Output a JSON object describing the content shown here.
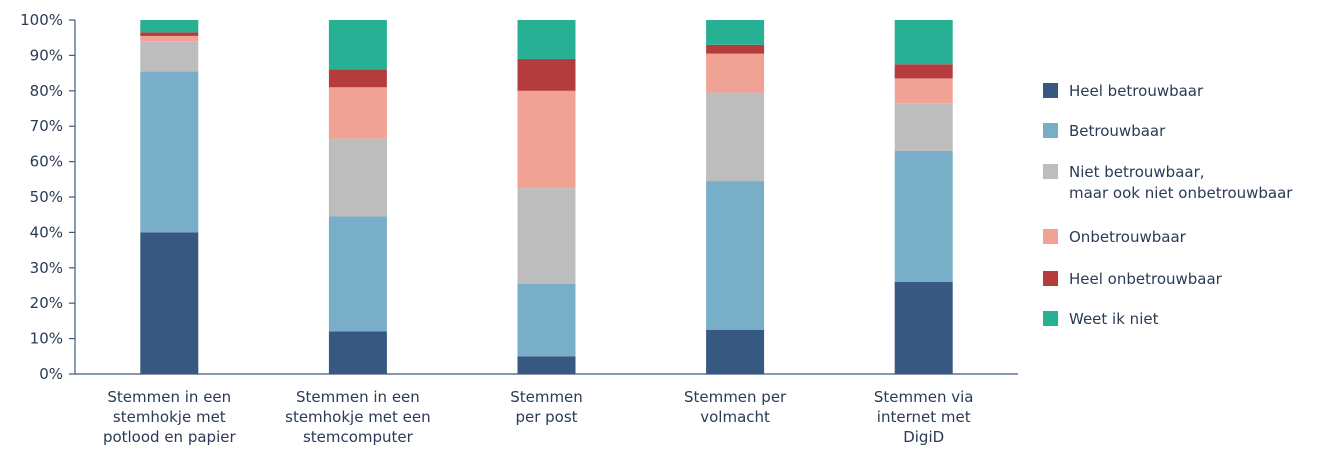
{
  "chart_data": {
    "type": "bar",
    "stacked": true,
    "percent": true,
    "categories": [
      [
        "Stemmen in een",
        "stemhokje met",
        "potlood en papier"
      ],
      [
        "Stemmen in een",
        "stemhokje met een",
        "stemcomputer"
      ],
      [
        "Stemmen",
        "per post"
      ],
      [
        "Stemmen per",
        "volmacht"
      ],
      [
        "Stemmen via",
        "internet met",
        "DigiD"
      ]
    ],
    "series": [
      {
        "name": "Heel betrouwbaar",
        "color": "#375880",
        "values": [
          40,
          12,
          5,
          12.5,
          26
        ]
      },
      {
        "name": "Betrouwbaar",
        "color": "#78aec8",
        "values": [
          45.5,
          32.5,
          20.5,
          42,
          37
        ]
      },
      {
        "name": [
          "Niet betrouwbaar,",
          "maar ook niet onbetrouwbaar"
        ],
        "color": "#bdbdbd",
        "values": [
          8.5,
          22,
          27,
          25,
          13.5
        ]
      },
      {
        "name": "Onbetrouwbaar",
        "color": "#f0a294",
        "values": [
          1.5,
          14.5,
          27.5,
          11,
          7
        ]
      },
      {
        "name": "Heel onbetrouwbaar",
        "color": "#b53c3c",
        "values": [
          1,
          5,
          9,
          2.5,
          4
        ]
      },
      {
        "name": "Weet ik niet",
        "color": "#27b094",
        "values": [
          3.5,
          14,
          11,
          7,
          12.5
        ]
      }
    ],
    "ylim": [
      0,
      100
    ],
    "yticks": [
      "0%",
      "10%",
      "20%",
      "30%",
      "40%",
      "50%",
      "60%",
      "70%",
      "80%",
      "90%",
      "100%"
    ],
    "grid": false,
    "legend_position": "right"
  }
}
